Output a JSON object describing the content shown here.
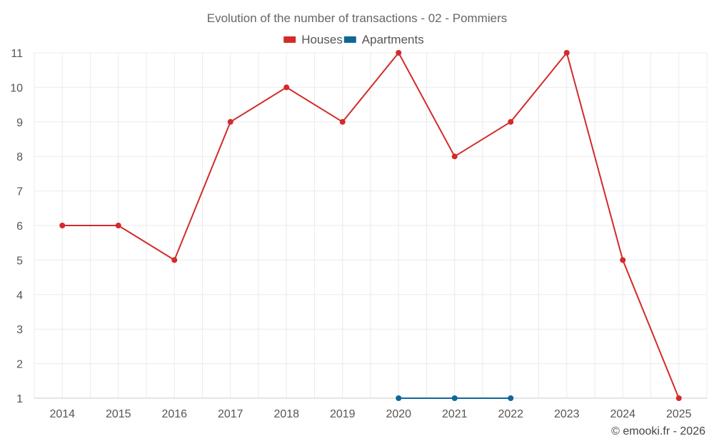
{
  "chart_data": {
    "type": "line",
    "title": "Evolution of the number of transactions - 02 - Pommiers",
    "x": [
      "2014",
      "2015",
      "2016",
      "2017",
      "2018",
      "2019",
      "2020",
      "2021",
      "2022",
      "2023",
      "2024",
      "2025"
    ],
    "ylim": [
      1,
      11
    ],
    "yticks": [
      1,
      2,
      3,
      4,
      5,
      6,
      7,
      8,
      9,
      10,
      11
    ],
    "grid": true,
    "legend_position": "top-center",
    "series": [
      {
        "name": "Houses",
        "color": "#d42a2a",
        "values": [
          6,
          6,
          5,
          9,
          10,
          9,
          11,
          8,
          9,
          11,
          5,
          1
        ]
      },
      {
        "name": "Apartments",
        "color": "#0f6798",
        "values": [
          null,
          null,
          null,
          null,
          null,
          null,
          1,
          1,
          1,
          null,
          null,
          null
        ]
      }
    ]
  },
  "credit": "© emooki.fr - 2026"
}
